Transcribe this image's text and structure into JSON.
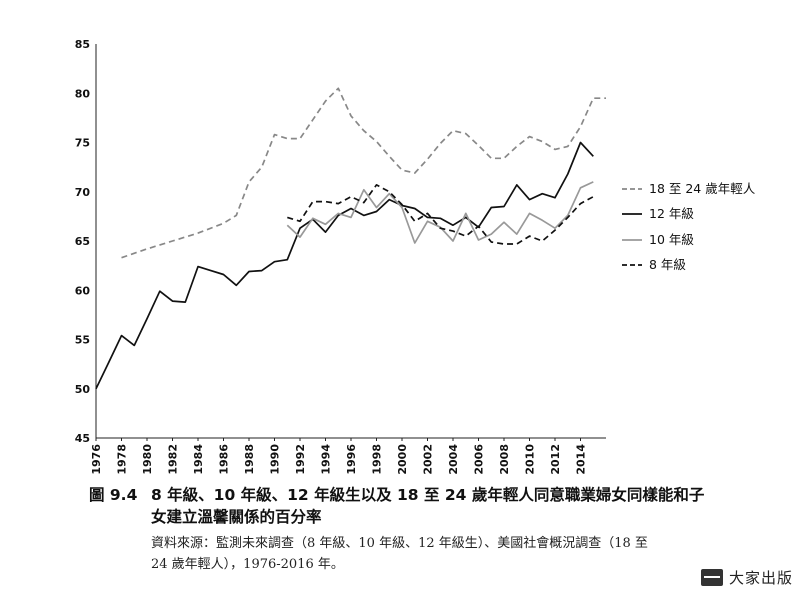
{
  "chart_data": {
    "type": "line",
    "y_range": [
      45,
      85
    ],
    "y_ticks": [
      45,
      50,
      55,
      60,
      65,
      70,
      75,
      80,
      85
    ],
    "x_range": [
      1976,
      2016
    ],
    "x_ticks": [
      1976,
      1978,
      1980,
      1982,
      1984,
      1986,
      1988,
      1990,
      1992,
      1994,
      1996,
      1998,
      2000,
      2002,
      2004,
      2006,
      2008,
      2010,
      2012,
      2014
    ],
    "grid": false,
    "legend_position": "right",
    "series": [
      {
        "name": "18 至 24 歲年輕人",
        "color": "#888888",
        "dash": "dashed",
        "x": [
          1978,
          1980,
          1982,
          1984,
          1986,
          1987,
          1988,
          1989,
          1990,
          1991,
          1992,
          1993,
          1994,
          1995,
          1996,
          1997,
          1998,
          1999,
          2000,
          2001,
          2002,
          2003,
          2004,
          2005,
          2006,
          2007,
          2008,
          2009,
          2010,
          2011,
          2012,
          2013,
          2014,
          2015,
          2016
        ],
        "y": [
          63.3,
          64.2,
          65.0,
          65.8,
          66.8,
          67.6,
          71.0,
          72.5,
          75.8,
          75.4,
          75.4,
          77.3,
          79.2,
          80.5,
          77.7,
          76.2,
          75.1,
          73.6,
          72.2,
          71.9,
          73.3,
          74.9,
          76.2,
          75.9,
          74.7,
          73.4,
          73.4,
          74.6,
          75.6,
          75.1,
          74.3,
          74.6,
          76.6,
          79.5,
          79.5
        ]
      },
      {
        "name": "12 年級",
        "color": "#111111",
        "dash": "solid",
        "x": [
          1976,
          1977,
          1978,
          1979,
          1980,
          1981,
          1982,
          1983,
          1984,
          1985,
          1986,
          1987,
          1988,
          1989,
          1990,
          1991,
          1992,
          1993,
          1994,
          1995,
          1996,
          1997,
          1998,
          1999,
          2000,
          2001,
          2002,
          2003,
          2004,
          2005,
          2006,
          2007,
          2008,
          2009,
          2010,
          2011,
          2012,
          2013,
          2014,
          2015
        ],
        "y": [
          50.0,
          52.7,
          55.4,
          54.4,
          57.1,
          59.9,
          58.9,
          58.8,
          62.4,
          62.0,
          61.6,
          60.5,
          61.9,
          62.0,
          62.9,
          63.1,
          66.3,
          67.2,
          65.9,
          67.6,
          68.3,
          67.6,
          68.0,
          69.2,
          68.6,
          68.3,
          67.4,
          67.3,
          66.6,
          67.4,
          66.4,
          68.4,
          68.5,
          70.7,
          69.2,
          69.8,
          69.4,
          71.8,
          75.0,
          73.6
        ]
      },
      {
        "name": "10 年級",
        "color": "#999999",
        "dash": "solid",
        "x": [
          1991,
          1992,
          1993,
          1994,
          1995,
          1996,
          1997,
          1998,
          1999,
          2000,
          2001,
          2002,
          2003,
          2004,
          2005,
          2006,
          2007,
          2008,
          2009,
          2010,
          2011,
          2012,
          2013,
          2014,
          2015
        ],
        "y": [
          66.6,
          65.4,
          67.3,
          66.7,
          67.8,
          67.4,
          70.2,
          68.4,
          69.8,
          68.4,
          64.8,
          67.0,
          66.4,
          65.0,
          67.8,
          65.1,
          65.7,
          66.9,
          65.7,
          67.8,
          67.1,
          66.3,
          67.6,
          70.4,
          71.0
        ]
      },
      {
        "name": "8 年級",
        "color": "#111111",
        "dash": "dashed",
        "x": [
          1991,
          1992,
          1993,
          1994,
          1995,
          1996,
          1997,
          1998,
          1999,
          2000,
          2001,
          2002,
          2003,
          2004,
          2005,
          2006,
          2007,
          2008,
          2009,
          2010,
          2011,
          2012,
          2013,
          2014,
          2015
        ],
        "y": [
          67.4,
          67.0,
          69.0,
          69.0,
          68.8,
          69.5,
          68.9,
          70.7,
          70.0,
          68.7,
          67.0,
          67.8,
          66.3,
          66.0,
          65.5,
          66.5,
          64.9,
          64.7,
          64.7,
          65.5,
          65.0,
          66.1,
          67.4,
          68.8,
          69.5
        ]
      }
    ]
  },
  "caption": {
    "figure_number": "圖 9.4",
    "title_line1": "8 年級、10 年級、12 年級生以及 18 至 24 歲年輕人同意職業婦女同樣能和子",
    "title_line2": "女建立溫馨關係的百分率"
  },
  "source": {
    "line1": "資料來源：監測未來調查（8 年級、10 年級、12 年級生）、美國社會概況調查（18 至",
    "line2": "24 歲年輕人），1976-2016 年。"
  },
  "brand": {
    "logo_icon": "publisher-logo-icon",
    "name": "大家出版"
  }
}
